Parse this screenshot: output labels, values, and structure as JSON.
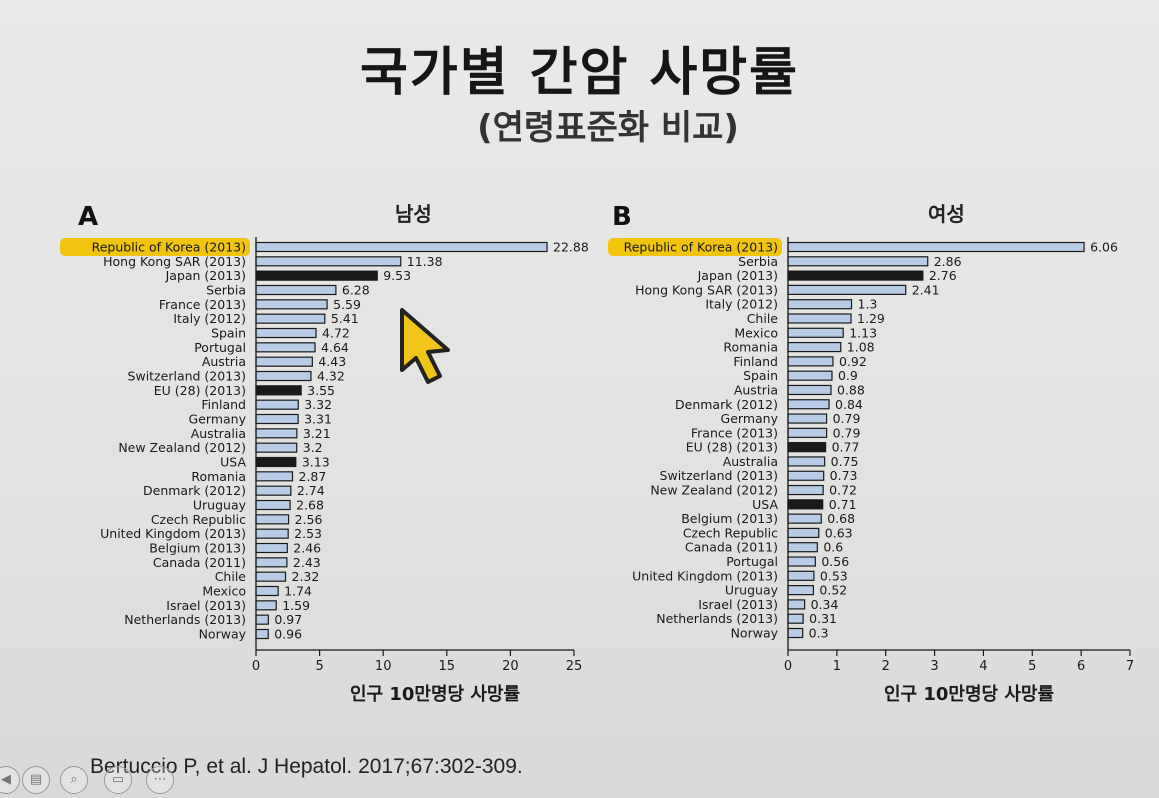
{
  "slide": {
    "title": "국가별 간암 사망률",
    "subtitle": "(연령표준화 비교)",
    "citation": "Bertuccio P, et al. J Hepatol. 2017;67:302-309."
  },
  "colors": {
    "bar_fill": "#b8cce8",
    "bar_highlight": "#1a1a1a",
    "label_highlight": "#f1c40f"
  },
  "toolbar": {
    "icons": [
      "back-icon",
      "slides-icon",
      "zoom-icon",
      "screen-icon",
      "more-icon"
    ]
  },
  "chart_data": [
    {
      "type": "bar",
      "orientation": "horizontal",
      "panel": "A",
      "title": "남성",
      "xlabel": "인구 10만명당 사망률",
      "xlim": [
        0,
        25
      ],
      "xticks": [
        0,
        5,
        10,
        15,
        20,
        25
      ],
      "highlighted_label": "Republic of Korea (2013)",
      "dark_bars": [
        "Japan (2013)",
        "EU (28) (2013)",
        "USA"
      ],
      "categories": [
        "Republic of Korea (2013)",
        "Hong Kong SAR (2013)",
        "Japan (2013)",
        "Serbia",
        "France (2013)",
        "Italy (2012)",
        "Spain",
        "Portugal",
        "Austria",
        "Switzerland (2013)",
        "EU (28) (2013)",
        "Finland",
        "Germany",
        "Australia",
        "New Zealand (2012)",
        "USA",
        "Romania",
        "Denmark (2012)",
        "Uruguay",
        "Czech Republic",
        "United Kingdom (2013)",
        "Belgium (2013)",
        "Canada (2011)",
        "Chile",
        "Mexico",
        "Israel (2013)",
        "Netherlands (2013)",
        "Norway"
      ],
      "values": [
        22.88,
        11.38,
        9.53,
        6.28,
        5.59,
        5.41,
        4.72,
        4.64,
        4.43,
        4.32,
        3.55,
        3.32,
        3.31,
        3.21,
        3.2,
        3.13,
        2.87,
        2.74,
        2.68,
        2.56,
        2.53,
        2.46,
        2.43,
        2.32,
        1.74,
        1.59,
        0.97,
        0.96
      ],
      "value_labels": [
        "22.88",
        "11.38",
        "9.53",
        "6.28",
        "5.59",
        "5.41",
        "4.72",
        "4.64",
        "4.43",
        "4.32",
        "3.55",
        "3.32",
        "3.31",
        "3.21",
        "3.2",
        "3.13",
        "2.87",
        "2.74",
        "2.68",
        "2.56",
        "2.53",
        "2.46",
        "2.43",
        "2.32",
        "1.74",
        "1.59",
        "0.97",
        "0.96"
      ]
    },
    {
      "type": "bar",
      "orientation": "horizontal",
      "panel": "B",
      "title": "여성",
      "xlabel": "인구 10만명당 사망률",
      "xlim": [
        0,
        7
      ],
      "xticks": [
        0,
        1,
        2,
        3,
        4,
        5,
        6,
        7
      ],
      "highlighted_label": "Republic of Korea (2013)",
      "dark_bars": [
        "Japan (2013)",
        "EU (28) (2013)",
        "USA"
      ],
      "categories": [
        "Republic of Korea (2013)",
        "Serbia",
        "Japan (2013)",
        "Hong Kong SAR (2013)",
        "Italy (2012)",
        "Chile",
        "Mexico",
        "Romania",
        "Finland",
        "Spain",
        "Austria",
        "Denmark (2012)",
        "Germany",
        "France (2013)",
        "EU (28) (2013)",
        "Australia",
        "Switzerland (2013)",
        "New Zealand (2012)",
        "USA",
        "Belgium (2013)",
        "Czech Republic",
        "Canada (2011)",
        "Portugal",
        "United Kingdom (2013)",
        "Uruguay",
        "Israel (2013)",
        "Netherlands (2013)",
        "Norway"
      ],
      "values": [
        6.06,
        2.86,
        2.76,
        2.41,
        1.3,
        1.29,
        1.13,
        1.08,
        0.92,
        0.9,
        0.88,
        0.84,
        0.79,
        0.79,
        0.77,
        0.75,
        0.73,
        0.72,
        0.71,
        0.68,
        0.63,
        0.6,
        0.56,
        0.53,
        0.52,
        0.34,
        0.31,
        0.3
      ],
      "value_labels": [
        "6.06",
        "2.86",
        "2.76",
        "2.41",
        "1.3",
        "1.29",
        "1.13",
        "1.08",
        "0.92",
        "0.9",
        "0.88",
        "0.84",
        "0.79",
        "0.79",
        "0.77",
        "0.75",
        "0.73",
        "0.72",
        "0.71",
        "0.68",
        "0.63",
        "0.6",
        "0.56",
        "0.53",
        "0.52",
        "0.34",
        "0.31",
        "0.3"
      ]
    }
  ]
}
